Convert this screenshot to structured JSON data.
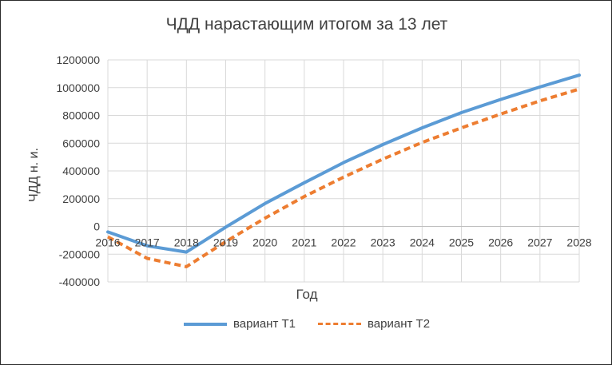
{
  "colors": {
    "series1": "#5b9bd5",
    "series2": "#ed7d31",
    "grid": "#d9d9d9",
    "text": "#404040"
  },
  "chart_data": {
    "type": "line",
    "title": "ЧДД нарастающим итогом за 13 лет",
    "xlabel": "Год",
    "ylabel": "ЧДД н. и.",
    "x": [
      2016,
      2017,
      2018,
      2019,
      2020,
      2021,
      2022,
      2023,
      2024,
      2025,
      2026,
      2027,
      2028
    ],
    "ylim": [
      -400000,
      1200000
    ],
    "yticks": [
      -400000,
      -200000,
      0,
      200000,
      400000,
      600000,
      800000,
      1000000,
      1200000
    ],
    "ytick_labels": [
      "-400000",
      "-200000",
      "0",
      "200000",
      "400000",
      "600000",
      "800000",
      "1000000",
      "1200000"
    ],
    "grid": true,
    "legend_position": "bottom",
    "series": [
      {
        "name": "вариант Т1",
        "style": "solid",
        "values": [
          -40000,
          -140000,
          -185000,
          -5000,
          165000,
          315000,
          460000,
          590000,
          710000,
          820000,
          915000,
          1005000,
          1090000
        ]
      },
      {
        "name": "вариант Т2",
        "style": "dashed",
        "values": [
          -75000,
          -230000,
          -290000,
          -110000,
          60000,
          215000,
          355000,
          485000,
          605000,
          710000,
          810000,
          905000,
          990000
        ]
      }
    ]
  }
}
